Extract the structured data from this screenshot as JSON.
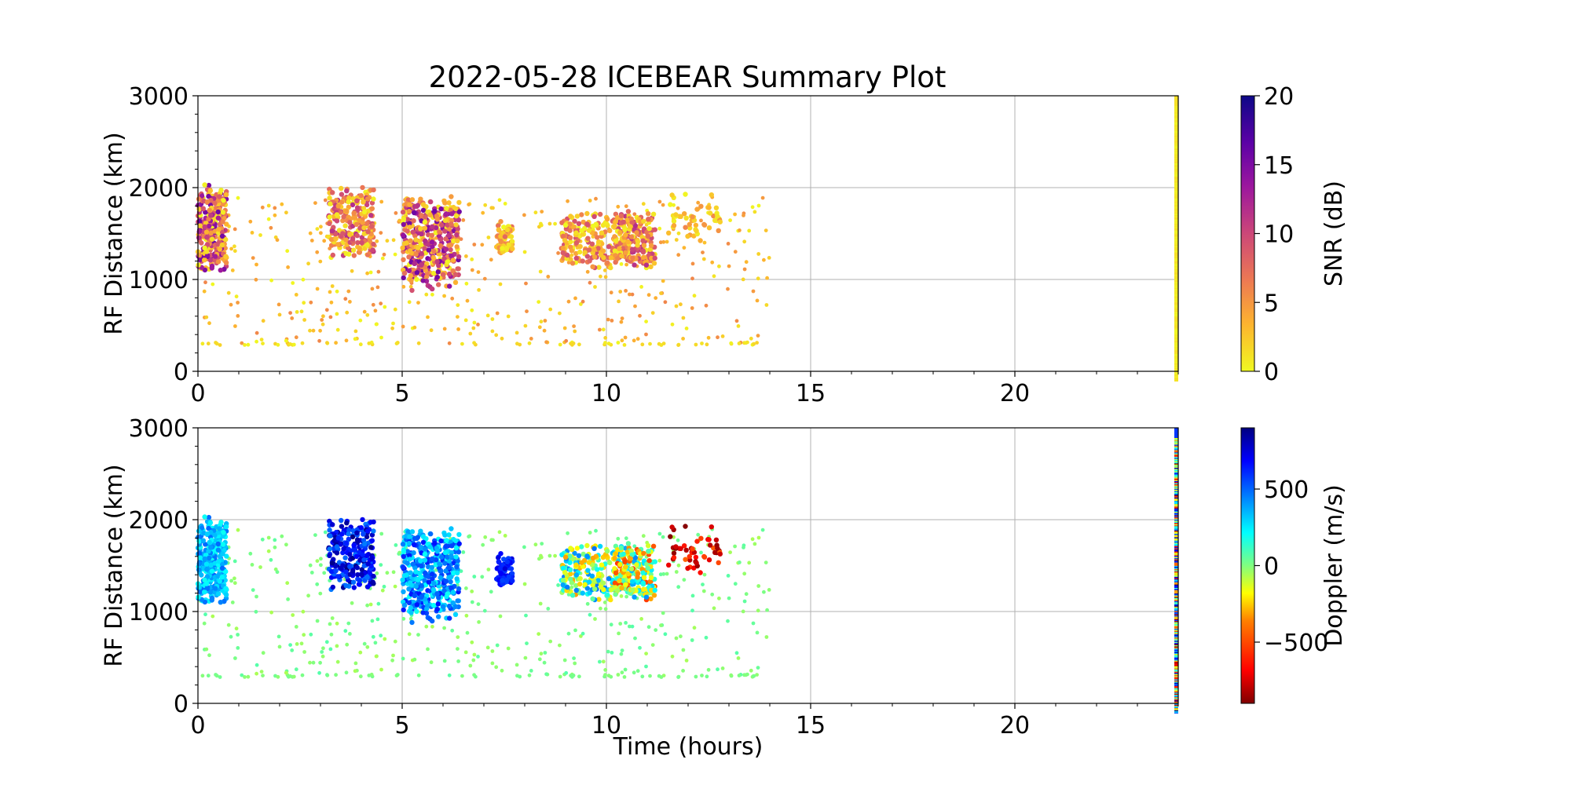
{
  "title": "2022-05-28 ICEBEAR Summary Plot",
  "colors": {
    "grid": "#b0b0b0",
    "axes": "#000000",
    "snr_cmap": [
      "#f0f921",
      "#fdb42f",
      "#ed7953",
      "#cc4778",
      "#9c179e",
      "#5c01a6",
      "#0d0887"
    ],
    "doppler_cmap": [
      "#800000",
      "#ff0000",
      "#ff8000",
      "#ffff00",
      "#80ff80",
      "#00ffff",
      "#0080ff",
      "#0000ff",
      "#000080"
    ]
  },
  "chart_data": [
    {
      "type": "scatter",
      "panel": "top",
      "ylabel": "RF Distance (km)",
      "xlabel": "",
      "xlim": [
        0,
        24
      ],
      "ylim": [
        0,
        3000
      ],
      "xticks": [
        "0",
        "5",
        "10",
        "15",
        "20"
      ],
      "yticks": [
        "0",
        "1000",
        "2000",
        "3000"
      ],
      "grid": true,
      "colorbar": {
        "label": "SNR (dB)",
        "ticks": [
          "0",
          "5",
          "10",
          "15",
          "20"
        ],
        "range": [
          0,
          20
        ]
      },
      "clusters": [
        {
          "t": [
            0.0,
            0.7
          ],
          "r": [
            1050,
            2050
          ],
          "n": 300,
          "c": [
            0,
            16
          ]
        },
        {
          "t": [
            3.2,
            4.3
          ],
          "r": [
            1200,
            2050
          ],
          "n": 230,
          "c": [
            0,
            12
          ]
        },
        {
          "t": [
            5.0,
            6.4
          ],
          "r": [
            850,
            1950
          ],
          "n": 420,
          "c": [
            0,
            16
          ]
        },
        {
          "t": [
            7.3,
            7.7
          ],
          "r": [
            1250,
            1650
          ],
          "n": 70,
          "c": [
            0,
            8
          ]
        },
        {
          "t": [
            8.9,
            10.2
          ],
          "r": [
            1100,
            1750
          ],
          "n": 180,
          "c": [
            0,
            10
          ]
        },
        {
          "t": [
            10.2,
            11.2
          ],
          "r": [
            1100,
            1750
          ],
          "n": 220,
          "c": [
            0,
            12
          ]
        },
        {
          "t": [
            11.5,
            12.8
          ],
          "r": [
            1400,
            1950
          ],
          "n": 50,
          "c": [
            0,
            6
          ]
        }
      ],
      "scatter": {
        "t": [
          0,
          14
        ],
        "r": [
          300,
          1900
        ],
        "n": 420,
        "c": [
          0,
          6
        ]
      },
      "baseline": {
        "t": [
          0,
          14
        ],
        "r": 300,
        "n": 60
      },
      "edge_column": {
        "t": 24,
        "r": [
          0,
          3000
        ]
      }
    },
    {
      "type": "scatter",
      "panel": "bottom",
      "ylabel": "RF Distance (km)",
      "xlabel": "Time (hours)",
      "xlim": [
        0,
        24
      ],
      "ylim": [
        0,
        3000
      ],
      "xticks": [
        "0",
        "5",
        "10",
        "15",
        "20"
      ],
      "yticks": [
        "0",
        "1000",
        "2000",
        "3000"
      ],
      "grid": true,
      "colorbar": {
        "label": "Doppler (m/s)",
        "ticks": [
          "−500",
          "0",
          "500"
        ],
        "tick_values": [
          -500,
          0,
          500
        ],
        "range": [
          -900,
          900
        ]
      },
      "clusters": [
        {
          "t": [
            0.0,
            0.7
          ],
          "r": [
            1050,
            2050
          ],
          "n": 300,
          "c": [
            200,
            500
          ]
        },
        {
          "t": [
            3.2,
            4.3
          ],
          "r": [
            1200,
            2050
          ],
          "n": 230,
          "c": [
            450,
            900
          ]
        },
        {
          "t": [
            5.0,
            6.4
          ],
          "r": [
            850,
            1950
          ],
          "n": 420,
          "c": [
            200,
            650
          ]
        },
        {
          "t": [
            7.3,
            7.7
          ],
          "r": [
            1250,
            1650
          ],
          "n": 70,
          "c": [
            550,
            750
          ]
        },
        {
          "t": [
            8.9,
            10.2
          ],
          "r": [
            1100,
            1750
          ],
          "n": 180,
          "c": [
            -400,
            500
          ]
        },
        {
          "t": [
            10.2,
            11.2
          ],
          "r": [
            1100,
            1750
          ],
          "n": 220,
          "c": [
            -600,
            450
          ]
        },
        {
          "t": [
            11.5,
            12.8
          ],
          "r": [
            1400,
            1950
          ],
          "n": 50,
          "c": [
            -900,
            -500
          ]
        }
      ],
      "scatter": {
        "t": [
          0,
          14
        ],
        "r": [
          300,
          1900
        ],
        "n": 420,
        "c": [
          -80,
          80
        ]
      },
      "baseline": {
        "t": [
          0,
          14
        ],
        "r": 300,
        "n": 60
      },
      "edge_column": {
        "t": 24,
        "r": [
          0,
          3000
        ]
      }
    }
  ]
}
